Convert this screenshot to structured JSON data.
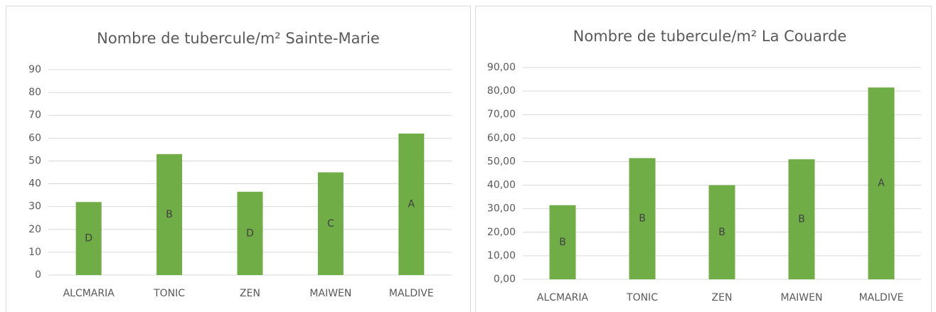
{
  "chart_data": [
    {
      "type": "bar",
      "title": "Nombre de tubercule/m² Sainte-Marie",
      "categories": [
        "ALCMARIA",
        "TONIC",
        "ZEN",
        "MAIWEN",
        "MALDIVE"
      ],
      "values": [
        32,
        53,
        36.5,
        45,
        62
      ],
      "annotations": [
        "D",
        "B",
        "D",
        "C",
        "A"
      ],
      "color": "#70ad47",
      "ylim": [
        0,
        90
      ],
      "yticks": [
        0,
        10,
        20,
        30,
        40,
        50,
        60,
        70,
        80,
        90
      ],
      "grid": true
    },
    {
      "type": "bar",
      "title": "Nombre de tubercule/m² La Couarde",
      "categories": [
        "ALCMARIA",
        "TONIC",
        "ZEN",
        "MAIWEN",
        "MALDIVE"
      ],
      "values": [
        31.5,
        51.5,
        40,
        51,
        81.5
      ],
      "annotations": [
        "B",
        "B",
        "B",
        "B",
        "A"
      ],
      "color": "#70ad47",
      "ylim": [
        0,
        90
      ],
      "yticks": [
        {
          "value": 0,
          "label": "0,00"
        },
        {
          "value": 10,
          "label": "10,00"
        },
        {
          "value": 20,
          "label": "20,00"
        },
        {
          "value": 30,
          "label": "30,00"
        },
        {
          "value": 40,
          "label": "40,00"
        },
        {
          "value": 50,
          "label": "50,00"
        },
        {
          "value": 60,
          "label": "60,00"
        },
        {
          "value": 70,
          "label": "70,00"
        },
        {
          "value": 80,
          "label": "80,00"
        },
        {
          "value": 90,
          "label": "90,00"
        }
      ],
      "grid": true
    }
  ]
}
